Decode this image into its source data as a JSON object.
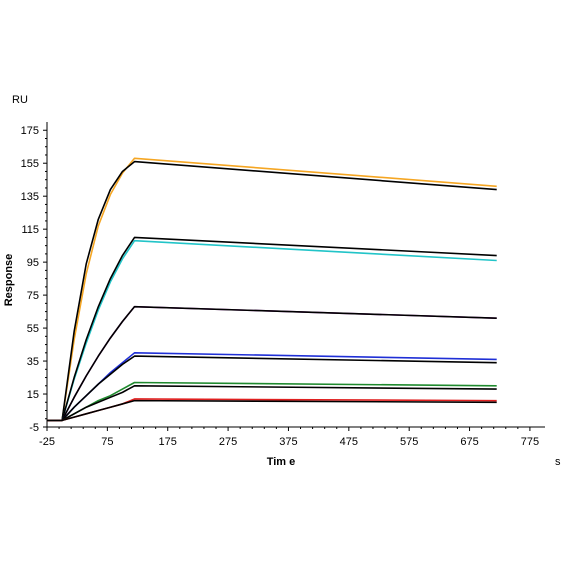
{
  "chart_data": {
    "type": "line",
    "title": "",
    "xlabel": "Tim e",
    "x_unit": "s",
    "ylabel": "Response",
    "y_unit": "RU",
    "xlim": [
      -25,
      800
    ],
    "ylim": [
      -5,
      180
    ],
    "x_ticks": [
      "-25",
      "75",
      "175",
      "275",
      "375",
      "475",
      "575",
      "675",
      "775"
    ],
    "y_ticks": [
      "-5",
      "15",
      "35",
      "55",
      "75",
      "95",
      "115",
      "135",
      "155",
      "175"
    ],
    "grid": false,
    "legend": "none",
    "association_start": 0,
    "association_end": 120,
    "dissociation_end": 720,
    "series": [
      {
        "kind": "data",
        "color": "#f5a623",
        "x": [
          -25,
          0,
          20,
          40,
          60,
          80,
          100,
          120,
          720
        ],
        "y": [
          -1,
          -1,
          48,
          88,
          117,
          136,
          149,
          158,
          141
        ]
      },
      {
        "kind": "fit",
        "color": "#000000",
        "x": [
          -25,
          0,
          20,
          40,
          60,
          80,
          100,
          120,
          720
        ],
        "y": [
          -1,
          -1,
          53,
          94,
          121,
          139,
          150,
          156,
          139
        ]
      },
      {
        "kind": "data",
        "color": "#22c4c8",
        "x": [
          -25,
          0,
          20,
          40,
          60,
          80,
          100,
          120,
          720
        ],
        "y": [
          -1,
          -1,
          24,
          46,
          66,
          83,
          97,
          108,
          96
        ]
      },
      {
        "kind": "fit",
        "color": "#000000",
        "x": [
          -25,
          0,
          20,
          40,
          60,
          80,
          100,
          120,
          720
        ],
        "y": [
          -1,
          -1,
          25,
          48,
          68,
          85,
          99,
          110,
          99
        ]
      },
      {
        "kind": "data",
        "color": "#9b2fae",
        "x": [
          -25,
          0,
          20,
          40,
          60,
          80,
          100,
          120,
          720
        ],
        "y": [
          -1,
          -1,
          13,
          26,
          38,
          49,
          59,
          68,
          61
        ]
      },
      {
        "kind": "fit",
        "color": "#000000",
        "x": [
          -25,
          0,
          20,
          40,
          60,
          80,
          100,
          120,
          720
        ],
        "y": [
          -1,
          -1,
          13,
          26,
          38,
          49,
          59,
          68,
          61
        ]
      },
      {
        "kind": "data",
        "color": "#1f2fd6",
        "x": [
          -25,
          0,
          20,
          40,
          60,
          80,
          100,
          120,
          720
        ],
        "y": [
          -1,
          -1,
          7,
          14,
          21,
          28,
          34,
          40,
          36
        ]
      },
      {
        "kind": "fit",
        "color": "#000000",
        "x": [
          -25,
          0,
          20,
          40,
          60,
          80,
          100,
          120,
          720
        ],
        "y": [
          -1,
          -1,
          7,
          14,
          21,
          27,
          33,
          38,
          34
        ]
      },
      {
        "kind": "data",
        "color": "#1f8a2e",
        "x": [
          -25,
          0,
          20,
          40,
          60,
          80,
          100,
          120,
          720
        ],
        "y": [
          -1,
          -1,
          3,
          7,
          11,
          14,
          18,
          22,
          20
        ]
      },
      {
        "kind": "fit",
        "color": "#000000",
        "x": [
          -25,
          0,
          20,
          40,
          60,
          80,
          100,
          120,
          720
        ],
        "y": [
          -1,
          -1,
          3,
          7,
          10,
          13,
          16,
          20,
          18
        ]
      },
      {
        "kind": "data",
        "color": "#e02020",
        "x": [
          -25,
          0,
          20,
          40,
          60,
          80,
          100,
          120,
          720
        ],
        "y": [
          -1,
          -1,
          1,
          3,
          5,
          7,
          9,
          12,
          11
        ]
      },
      {
        "kind": "fit",
        "color": "#000000",
        "x": [
          -25,
          0,
          20,
          40,
          60,
          80,
          100,
          120,
          720
        ],
        "y": [
          -1,
          -1,
          1,
          3,
          5,
          7,
          9,
          11,
          10
        ]
      }
    ]
  }
}
